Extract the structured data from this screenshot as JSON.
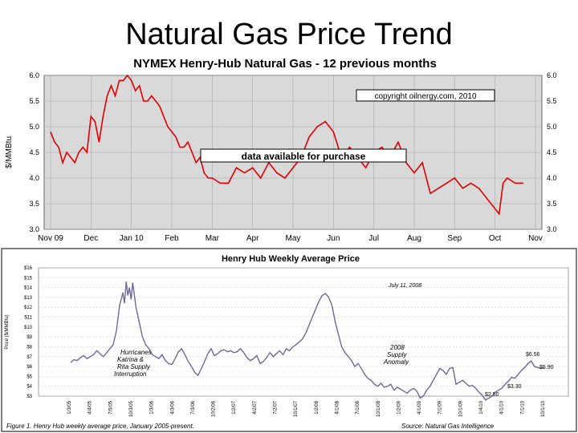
{
  "slide_title": "Natural Gas Price Trend",
  "chart_data": [
    {
      "type": "line",
      "title": "NYMEX Henry-Hub Natural Gas - 12 previous months",
      "ylabel": "$/MMBtu",
      "ylim": [
        3.0,
        6.0
      ],
      "yticks": [
        "3.0",
        "3.5",
        "4.0",
        "4.5",
        "5.0",
        "5.5",
        "6.0"
      ],
      "xticks": [
        "Nov 09",
        "Dec",
        "Jan 10",
        "Feb",
        "Mar",
        "Apr",
        "May",
        "Jun",
        "Jul",
        "Aug",
        "Sep",
        "Oct",
        "Nov"
      ],
      "grid": true,
      "color": "#e00000",
      "annotations": [
        "copyright oilnergy.com, 2010",
        "data available for purchase"
      ],
      "series": [
        {
          "x": [
            0,
            0.1,
            0.2,
            0.3,
            0.4,
            0.5,
            0.6,
            0.7,
            0.8,
            0.9,
            1.0,
            1.1,
            1.2,
            1.3,
            1.4,
            1.5,
            1.6,
            1.7,
            1.8,
            1.9,
            2.0,
            2.1,
            2.2,
            2.3,
            2.4,
            2.5,
            2.6,
            2.7,
            2.8,
            2.9,
            3.0,
            3.1,
            3.2,
            3.3,
            3.4,
            3.5,
            3.6,
            3.7,
            3.8,
            3.9,
            4.0,
            4.2,
            4.4,
            4.6,
            4.8,
            5.0,
            5.2,
            5.4,
            5.6,
            5.8,
            6.0,
            6.2,
            6.4,
            6.6,
            6.8,
            7.0,
            7.2,
            7.4,
            7.6,
            7.8,
            8.0,
            8.2,
            8.4,
            8.6,
            8.8,
            9.0,
            9.2,
            9.4,
            9.6,
            9.8,
            10.0,
            10.2,
            10.4,
            10.6,
            10.8,
            11.0,
            11.1,
            11.2,
            11.3,
            11.5,
            11.7
          ],
          "y": [
            4.9,
            4.7,
            4.6,
            4.3,
            4.5,
            4.4,
            4.3,
            4.5,
            4.6,
            4.5,
            5.2,
            5.1,
            4.7,
            5.2,
            5.6,
            5.8,
            5.6,
            5.9,
            5.9,
            6.0,
            5.9,
            5.7,
            5.8,
            5.5,
            5.5,
            5.6,
            5.5,
            5.4,
            5.2,
            5.0,
            4.9,
            4.8,
            4.6,
            4.6,
            4.7,
            4.5,
            4.3,
            4.4,
            4.1,
            4.0,
            4.0,
            3.9,
            3.9,
            4.2,
            4.1,
            4.2,
            4.0,
            4.3,
            4.1,
            4.0,
            4.2,
            4.4,
            4.8,
            5.0,
            5.1,
            4.9,
            4.4,
            4.6,
            4.4,
            4.2,
            4.5,
            4.6,
            4.4,
            4.7,
            4.3,
            4.1,
            4.3,
            3.7,
            3.8,
            3.9,
            4.0,
            3.8,
            3.9,
            3.8,
            3.6,
            3.4,
            3.3,
            3.9,
            4.0,
            3.9,
            3.9
          ]
        }
      ]
    },
    {
      "type": "line",
      "title": "Henry Hub Weekly Average Price",
      "ylabel": "Price ($/MMBtu)",
      "ylim": [
        3.0,
        16.0
      ],
      "yticks": [
        "$3",
        "$4",
        "$5",
        "$6",
        "$7",
        "$8",
        "$9",
        "$10",
        "$11",
        "$12",
        "$13",
        "$14",
        "$15",
        "$16"
      ],
      "xticks": [
        "1/3/05",
        "4/4/05",
        "7/5/05",
        "10/3/05",
        "1/3/06",
        "4/3/06",
        "7/3/06",
        "10/2/06",
        "1/2/07",
        "4/2/07",
        "7/2/07",
        "10/1/07",
        "1/2/08",
        "4/1/08",
        "7/1/08",
        "10/1/08",
        "1/2/09",
        "4/1/09",
        "7/1/09",
        "10/1/09",
        "1/4/10",
        "4/1/10",
        "7/1/10",
        "10/1/10"
      ],
      "grid": true,
      "color": "#6a6a9e",
      "annotations": [
        "July 11, 2008",
        "Hurricanes Katrina & Rita Supply Interruption",
        "2008 Supply Anomaly",
        "$6.56",
        "$5.90",
        "$3.30",
        "$2.50",
        "$3.30"
      ],
      "caption": "Figure 1.  Henry Hub weekly average price, January 2005-present.",
      "source": "Source:  Natural Gas Intelligence",
      "series": [
        {
          "x": [
            0,
            2,
            4,
            6,
            8,
            10,
            12,
            14,
            16,
            18,
            20,
            22,
            24,
            26,
            28,
            30,
            32,
            33,
            34,
            35,
            36,
            37,
            38,
            40,
            42,
            44,
            46,
            48,
            50,
            52,
            54,
            56,
            58,
            60,
            62,
            64,
            66,
            68,
            70,
            72,
            74,
            76,
            78,
            80,
            82,
            84,
            86,
            88,
            90,
            92,
            94,
            96,
            98,
            100,
            102,
            104,
            106,
            108,
            110,
            112,
            114,
            116,
            118,
            120,
            122,
            124,
            126,
            128,
            130,
            132,
            134,
            136,
            138,
            140,
            142,
            144,
            146,
            148,
            150,
            152,
            154,
            156,
            158,
            160,
            162,
            164,
            166,
            168,
            170,
            172,
            174,
            176,
            178,
            180,
            182,
            184,
            186,
            188,
            190,
            192,
            194,
            196,
            198,
            200,
            202,
            204,
            206,
            208,
            210,
            212,
            214,
            216,
            218,
            220,
            222,
            224,
            226,
            228,
            230,
            232,
            234,
            236,
            238,
            240,
            242,
            244,
            246,
            248,
            250,
            252,
            254,
            256,
            258,
            260,
            262,
            264,
            266,
            268,
            270,
            272,
            274,
            276,
            278,
            280,
            282,
            284,
            286,
            288,
            290
          ],
          "y": [
            6.4,
            6.7,
            6.6,
            6.9,
            7.1,
            6.8,
            7.0,
            7.2,
            7.6,
            7.3,
            7.0,
            7.4,
            7.8,
            8.2,
            9.6,
            12.2,
            13.5,
            12.4,
            14.6,
            13.2,
            14.0,
            12.8,
            14.5,
            12.0,
            10.5,
            9.0,
            8.2,
            7.8,
            7.2,
            7.0,
            6.8,
            7.2,
            6.6,
            6.3,
            6.2,
            6.8,
            7.5,
            7.8,
            7.2,
            6.5,
            6.0,
            5.4,
            5.1,
            5.8,
            6.5,
            7.3,
            7.8,
            7.1,
            7.3,
            7.6,
            7.7,
            7.5,
            7.6,
            7.4,
            7.5,
            7.8,
            7.4,
            6.9,
            6.6,
            6.8,
            7.1,
            6.3,
            6.5,
            6.9,
            7.4,
            7.0,
            7.3,
            7.6,
            7.2,
            7.8,
            7.6,
            8.0,
            8.2,
            8.5,
            8.8,
            9.4,
            10.2,
            11.0,
            11.8,
            12.6,
            13.2,
            13.4,
            13.0,
            12.2,
            10.5,
            9.2,
            8.0,
            7.4,
            7.0,
            6.6,
            6.0,
            6.3,
            5.8,
            5.2,
            4.8,
            4.6,
            4.2,
            4.0,
            4.3,
            3.9,
            4.0,
            4.2,
            3.6,
            3.9,
            3.7,
            3.5,
            3.3,
            3.6,
            3.8,
            3.5,
            2.8,
            3.0,
            3.6,
            4.0,
            4.6,
            5.2,
            5.8,
            5.6,
            5.2,
            5.8,
            5.9,
            4.2,
            4.4,
            4.6,
            4.3,
            4.0,
            4.1,
            3.8,
            3.4,
            3.1,
            2.6,
            2.8,
            3.0,
            3.4,
            3.6,
            3.8,
            4.2,
            4.5,
            4.9,
            4.8,
            5.2,
            5.6,
            5.9,
            6.3,
            6.56,
            6.0,
            5.9,
            5.8,
            5.9
          ]
        }
      ]
    }
  ]
}
